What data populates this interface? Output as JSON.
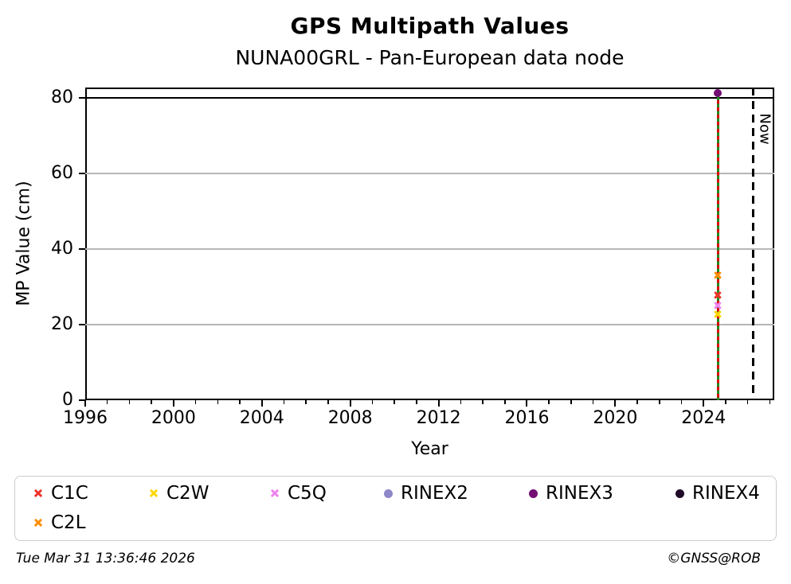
{
  "chart_data": {
    "type": "scatter",
    "title": "GPS Multipath Values",
    "subtitle": "NUNA00GRL - Pan-European data node",
    "xlabel": "Year",
    "ylabel": "MP Value (cm)",
    "xlim": [
      1996,
      2027.2
    ],
    "ylim": [
      0,
      82.7
    ],
    "x_major_ticks": [
      1996,
      2000,
      2004,
      2008,
      2012,
      2016,
      2020,
      2024
    ],
    "x_minor_tick_step_years": 1,
    "y_major_ticks": [
      0,
      20,
      40,
      60,
      80
    ],
    "grid": "horizontal major gridlines",
    "series": [
      {
        "name": "C1C",
        "marker": "x",
        "color": "#f03328",
        "points": [
          {
            "x": 2024.65,
            "y": 27.8
          }
        ]
      },
      {
        "name": "C2W",
        "marker": "x",
        "color": "#ffd700",
        "points": [
          {
            "x": 2024.65,
            "y": 22.7
          }
        ]
      },
      {
        "name": "C5Q",
        "marker": "x",
        "color": "#ee82ee",
        "points": [
          {
            "x": 2024.65,
            "y": 25.1
          }
        ]
      },
      {
        "name": "RINEX2",
        "marker": "circle",
        "color": "#8d86c9",
        "points": []
      },
      {
        "name": "RINEX3",
        "marker": "circle",
        "color": "#740d74",
        "points": [
          {
            "x": 2024.65,
            "y": 81.3
          }
        ]
      },
      {
        "name": "RINEX4",
        "marker": "circle",
        "color": "#1f0b28",
        "points": []
      },
      {
        "name": "C2L",
        "marker": "x",
        "color": "#ff8c00",
        "points": [
          {
            "x": 2024.65,
            "y": 33.1
          }
        ]
      }
    ],
    "annotations": {
      "hline": {
        "y": 80,
        "color": "#000000",
        "style": "solid"
      },
      "vlines": [
        {
          "x": 2024.65,
          "color": "#1e8c1e",
          "style": "solid",
          "y_from": 0,
          "y_to": 81.3
        },
        {
          "x": 2024.65,
          "color": "#e00000",
          "style": "dashed",
          "y_from": 0,
          "y_to": 81.3
        },
        {
          "x": 2026.25,
          "color": "#000000",
          "style": "dashed",
          "y_from": 0,
          "y_to": 82.7,
          "label": "Now"
        }
      ]
    },
    "legend": {
      "position": "bottom",
      "items": [
        {
          "label": "C1C",
          "col": 0,
          "row": 0
        },
        {
          "label": "C2W",
          "col": 1,
          "row": 0
        },
        {
          "label": "C5Q",
          "col": 2,
          "row": 0
        },
        {
          "label": "RINEX2",
          "col": 3,
          "row": 0
        },
        {
          "label": "RINEX3",
          "col": 4,
          "row": 0
        },
        {
          "label": "RINEX4",
          "col": 5,
          "row": 0
        },
        {
          "label": "C2L",
          "col": 0,
          "row": 1
        }
      ]
    }
  },
  "footer": {
    "timestamp": "Tue Mar 31 13:36:46 2026",
    "credit": "©GNSS@ROB"
  }
}
